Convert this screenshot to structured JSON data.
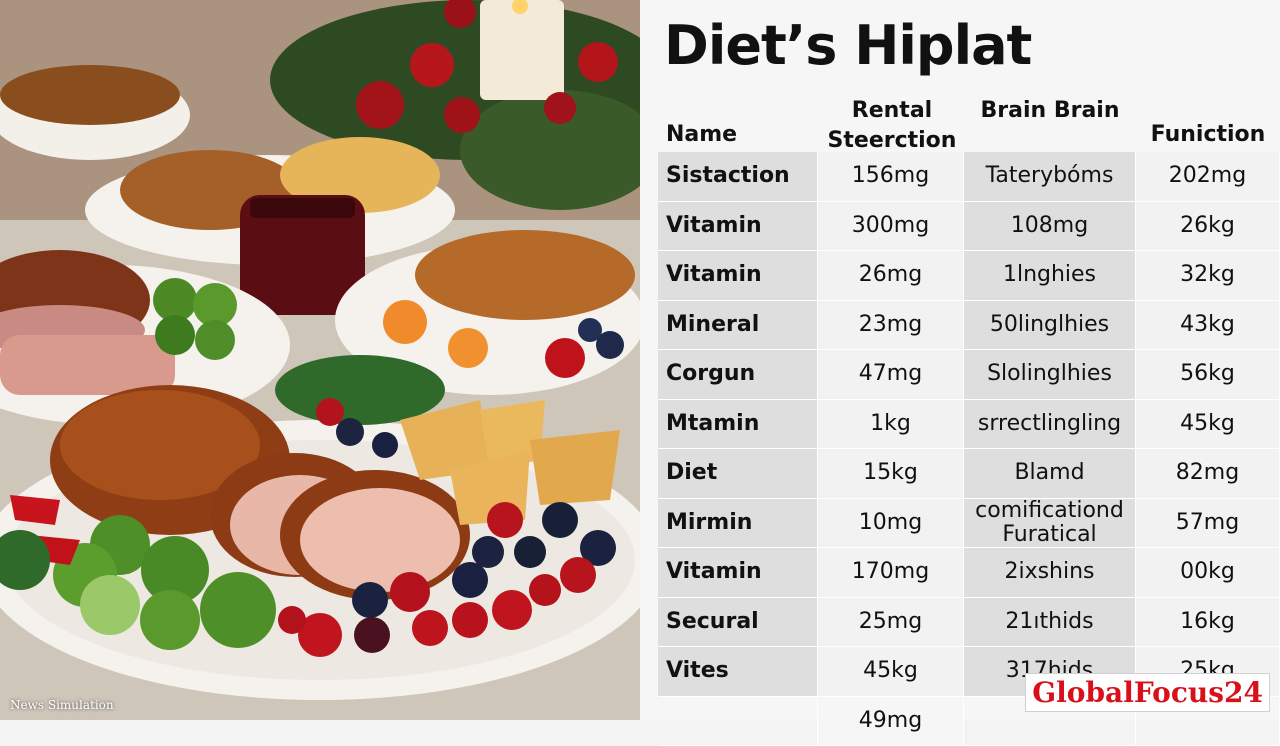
{
  "photo": {
    "caption": "News Simulation"
  },
  "table": {
    "title": "Diet’s Hiplat",
    "headers": {
      "name": "Name",
      "col1": "Rental Steerction",
      "col2": "Brain Brain",
      "col3": "Funiction"
    },
    "rows": [
      {
        "name": "Sistaction",
        "v1": "156mg",
        "v2": "Taterybóms",
        "v3": "202mg"
      },
      {
        "name": "Vitamin",
        "v1": "300mg",
        "v2": "108mg",
        "v3": "26kg"
      },
      {
        "name": "Vitamin",
        "v1": "26mg",
        "v2": "1lnghies",
        "v3": "32kg"
      },
      {
        "name": "Mineral",
        "v1": "23mg",
        "v2": "50linglhies",
        "v3": "43kg"
      },
      {
        "name": "Corgun",
        "v1": "47mg",
        "v2": "Slolinglhies",
        "v3": "56kg"
      },
      {
        "name": "Mtamin",
        "v1": "1kg",
        "v2": "srrectlingling",
        "v3": "45kg"
      },
      {
        "name": "Diet",
        "v1": "15kg",
        "v2": "Blamd",
        "v3": "82mg"
      },
      {
        "name": "Mirmin",
        "v1": "10mg",
        "v2": "comificationd Furatical",
        "v3": "57mg"
      },
      {
        "name": "Vitamin",
        "v1": "170mg",
        "v2": "2ixshins",
        "v3": "00kg"
      },
      {
        "name": "Secural",
        "v1": "25mg",
        "v2": "21ıthids",
        "v3": "16kg"
      },
      {
        "name": "Vites",
        "v1": "45kg",
        "v2": "317hids",
        "v3": "25kg"
      },
      {
        "name": "",
        "v1": "49mg",
        "v2": "",
        "v3": ""
      }
    ]
  },
  "brand": {
    "label": "GlobalFocus24",
    "color": "#d8101a"
  }
}
